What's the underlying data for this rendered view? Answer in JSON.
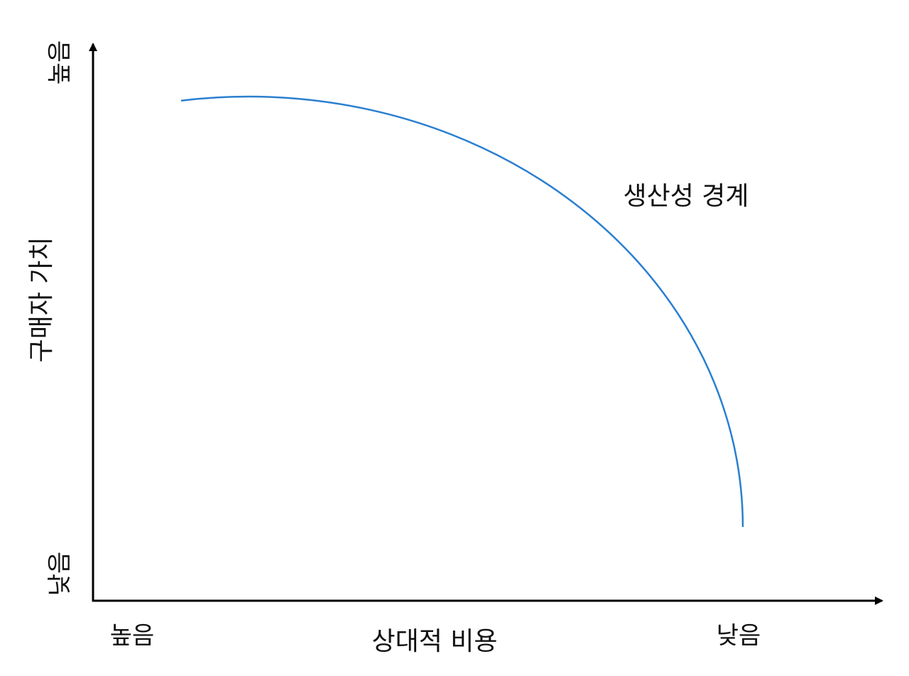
{
  "y_axis": {
    "label": "구매자 가치",
    "top": "높음",
    "bottom": "낮음"
  },
  "x_axis": {
    "label": "상대적 비용",
    "left": "높음",
    "right": "낮음"
  },
  "curve": {
    "label": "생산성 경계"
  }
}
